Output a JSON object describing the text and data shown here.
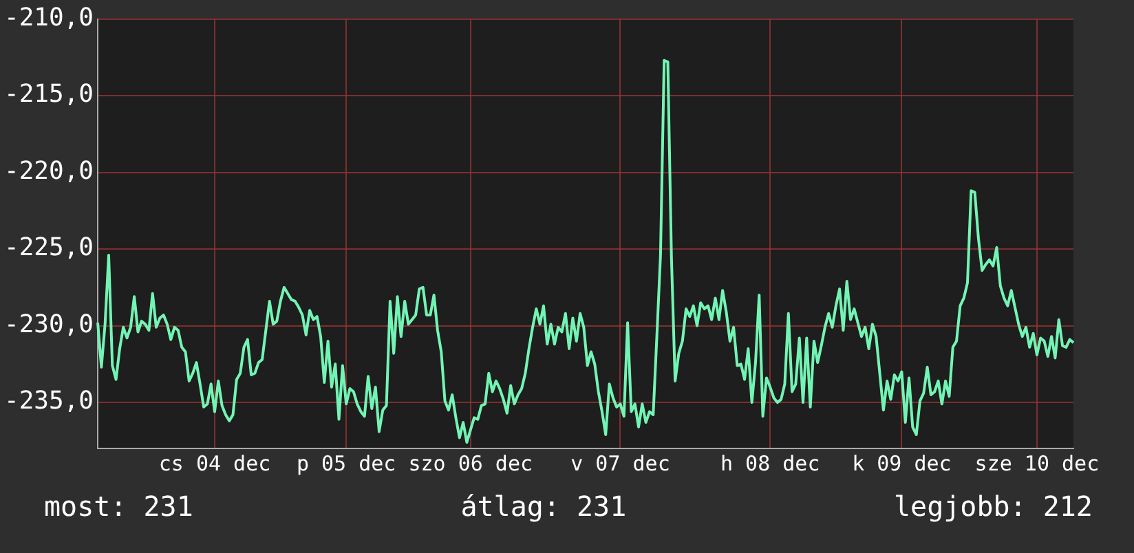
{
  "chart_data": {
    "type": "line",
    "categories": [
      null,
      null,
      null,
      null,
      null,
      null,
      null,
      null,
      null,
      null,
      null,
      null,
      null,
      null,
      null,
      null,
      null,
      null,
      null,
      null,
      null,
      null,
      null,
      null,
      null,
      null,
      null,
      null,
      null,
      null,
      null,
      null,
      "cs 04 dec",
      null,
      null,
      null,
      null,
      null,
      null,
      null,
      null,
      null,
      null,
      null,
      null,
      null,
      null,
      null,
      null,
      null,
      null,
      null,
      null,
      null,
      null,
      null,
      null,
      null,
      null,
      null,
      null,
      null,
      null,
      null,
      null,
      null,
      null,
      null,
      "p 05 dec",
      null,
      null,
      null,
      null,
      null,
      null,
      null,
      null,
      null,
      null,
      null,
      null,
      null,
      null,
      null,
      null,
      null,
      null,
      null,
      null,
      null,
      null,
      null,
      null,
      null,
      null,
      null,
      null,
      null,
      null,
      null,
      null,
      null,
      "szo 06 dec",
      null,
      null,
      null,
      null,
      null,
      null,
      null,
      null,
      null,
      null,
      null,
      null,
      null,
      null,
      null,
      null,
      null,
      null,
      null,
      null,
      null,
      null,
      null,
      null,
      null,
      null,
      null,
      null,
      null,
      null,
      null,
      null,
      null,
      null,
      null,
      null,
      null,
      null,
      null,
      null,
      "v 07 dec",
      null,
      null,
      null,
      null,
      null,
      null,
      null,
      null,
      null,
      null,
      null,
      null,
      null,
      null,
      null,
      null,
      null,
      null,
      null,
      null,
      null,
      null,
      null,
      null,
      null,
      null,
      null,
      null,
      null,
      null,
      null,
      null,
      null,
      null,
      null,
      null,
      null,
      null,
      null,
      null,
      "h 08 dec",
      null,
      null,
      null,
      null,
      null,
      null,
      null,
      null,
      null,
      null,
      null,
      null,
      null,
      null,
      null,
      null,
      null,
      null,
      null,
      null,
      null,
      null,
      null,
      null,
      null,
      null,
      null,
      null,
      null,
      null,
      null,
      null,
      null,
      null,
      null,
      "k 09 dec",
      null,
      null,
      null,
      null,
      null,
      null,
      null,
      null,
      null,
      null,
      null,
      null,
      null,
      null,
      null,
      null,
      null,
      null,
      null,
      null,
      null,
      null,
      null,
      null,
      null,
      null,
      null,
      null,
      null,
      null,
      null,
      null,
      null,
      null,
      null,
      null,
      "sze 10 dec",
      null,
      null,
      null,
      null,
      null,
      null,
      null,
      null,
      null,
      null
    ],
    "series": [
      {
        "color": "#72f5b4",
        "values": [
          -229.8,
          -232.7,
          -229.9,
          -225.4,
          -232.6,
          -233.5,
          -231.5,
          -230.1,
          -230.8,
          -230.1,
          -228.1,
          -230.4,
          -229.7,
          -229.9,
          -230.3,
          -227.9,
          -230.1,
          -229.5,
          -229.3,
          -229.9,
          -230.9,
          -230.1,
          -230.3,
          -231.4,
          -231.7,
          -233.6,
          -233.1,
          -232.4,
          -233.8,
          -235.3,
          -235.1,
          -233.8,
          -235.6,
          -233.6,
          -235.2,
          -235.8,
          -236.2,
          -235.8,
          -233.5,
          -233.1,
          -231.4,
          -230.9,
          -233.2,
          -233.1,
          -232.4,
          -232.2,
          -230.3,
          -228.4,
          -229.9,
          -229.7,
          -228.4,
          -227.5,
          -227.9,
          -228.3,
          -228.4,
          -228.8,
          -229.3,
          -230.6,
          -229.0,
          -229.6,
          -229.4,
          -230.7,
          -233.7,
          -231.0,
          -234.0,
          -232.5,
          -236.1,
          -232.6,
          -235.1,
          -234.1,
          -234.3,
          -235.1,
          -235.6,
          -235.9,
          -233.3,
          -235.4,
          -234.0,
          -236.9,
          -235.5,
          -235.2,
          -228.4,
          -231.8,
          -228.1,
          -230.7,
          -228.4,
          -229.9,
          -229.6,
          -229.3,
          -227.6,
          -227.5,
          -229.3,
          -229.3,
          -228.0,
          -230.3,
          -231.7,
          -234.9,
          -235.5,
          -234.5,
          -236.0,
          -237.3,
          -236.3,
          -237.6,
          -236.8,
          -236.0,
          -236.1,
          -235.2,
          -235.1,
          -233.1,
          -234.3,
          -233.6,
          -234.1,
          -234.8,
          -235.7,
          -233.9,
          -235.1,
          -234.5,
          -234.1,
          -233.1,
          -231.5,
          -230.1,
          -228.9,
          -229.9,
          -228.7,
          -231.2,
          -229.9,
          -231.2,
          -230.1,
          -230.4,
          -229.2,
          -231.5,
          -229.5,
          -231.0,
          -229.2,
          -230.1,
          -232.6,
          -231.7,
          -232.5,
          -234.3,
          -235.6,
          -237.1,
          -233.8,
          -234.7,
          -235.3,
          -235.1,
          -235.9,
          -229.8,
          -235.6,
          -235.1,
          -236.6,
          -235.1,
          -236.3,
          -235.6,
          -235.8,
          -230.7,
          -225.4,
          -212.7,
          -212.8,
          -225.6,
          -233.6,
          -231.8,
          -231.0,
          -228.9,
          -229.4,
          -228.7,
          -230.0,
          -228.5,
          -228.9,
          -228.7,
          -229.6,
          -228.2,
          -229.6,
          -227.7,
          -229.1,
          -231.0,
          -230.1,
          -232.6,
          -232.5,
          -233.5,
          -231.5,
          -235.0,
          -232.4,
          -228.0,
          -235.9,
          -233.4,
          -234.0,
          -234.7,
          -235.0,
          -234.8,
          -233.8,
          -229.2,
          -234.3,
          -233.8,
          -230.8,
          -235.0,
          -230.8,
          -235.3,
          -231.0,
          -232.4,
          -231.3,
          -230.1,
          -229.2,
          -230.1,
          -228.7,
          -227.6,
          -230.3,
          -227.1,
          -229.6,
          -228.9,
          -229.8,
          -230.7,
          -230.1,
          -231.5,
          -229.9,
          -230.7,
          -233.1,
          -235.5,
          -233.6,
          -234.8,
          -233.2,
          -233.6,
          -233.0,
          -236.3,
          -233.4,
          -236.6,
          -237.1,
          -234.9,
          -234.4,
          -232.7,
          -234.5,
          -234.3,
          -233.6,
          -235.1,
          -233.6,
          -234.6,
          -231.4,
          -231.0,
          -228.7,
          -228.2,
          -227.2,
          -221.2,
          -221.3,
          -224.3,
          -226.4,
          -226.0,
          -225.7,
          -226.1,
          -224.9,
          -227.4,
          -228.2,
          -228.7,
          -227.7,
          -228.8,
          -229.9,
          -230.7,
          -230.1,
          -231.4,
          -230.5,
          -231.9,
          -230.8,
          -231.0,
          -232.0,
          -230.7,
          -232.1,
          -229.6,
          -231.3,
          -231.4,
          -230.9,
          -231.1
        ]
      }
    ],
    "ylim": [
      -238,
      -210
    ],
    "yticks": [
      {
        "value": -210,
        "label": "-210,0"
      },
      {
        "value": -215,
        "label": "-215,0"
      },
      {
        "value": -220,
        "label": "-220,0"
      },
      {
        "value": -225,
        "label": "-225,0"
      },
      {
        "value": -230,
        "label": "-230,0"
      },
      {
        "value": -235,
        "label": "-235,0"
      }
    ],
    "grid": true,
    "marker": "none",
    "line_style": "solid",
    "annotations": [
      "most: 231",
      "átlag: 231",
      "legjobb: 212"
    ]
  }
}
